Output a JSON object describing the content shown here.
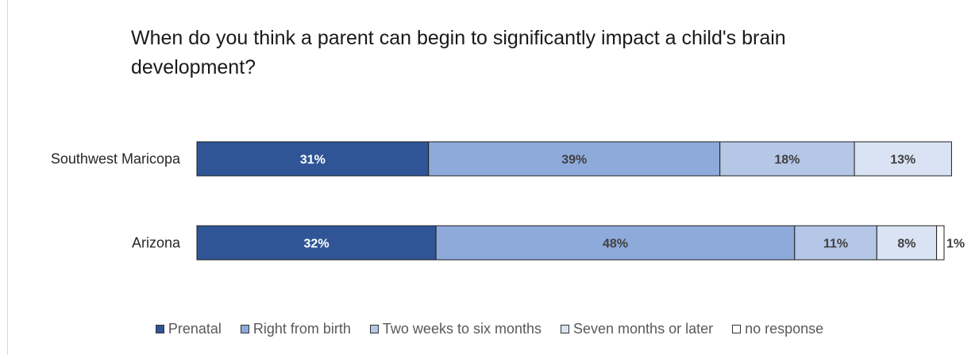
{
  "chart_data": {
    "type": "bar",
    "orientation": "horizontal",
    "stacked": true,
    "title": "When do you think a parent can begin to significantly impact a child's brain development?",
    "categories": [
      "Southwest Maricopa",
      "Arizona"
    ],
    "series": [
      {
        "name": "Prenatal",
        "color": "#2f5597",
        "label_color": "#ffffff",
        "values": [
          31,
          32
        ],
        "labels": [
          "31%",
          "32%"
        ]
      },
      {
        "name": "Right from birth",
        "color": "#8eaadb",
        "label_color": "#404040",
        "values": [
          39,
          48
        ],
        "labels": [
          "39%",
          "48%"
        ]
      },
      {
        "name": "Two weeks to six months",
        "color": "#b4c7e7",
        "label_color": "#404040",
        "values": [
          18,
          11
        ],
        "labels": [
          "18%",
          "11%"
        ]
      },
      {
        "name": "Seven months or later",
        "color": "#dae3f3",
        "label_color": "#404040",
        "values": [
          13,
          8
        ],
        "labels": [
          "13%",
          "8%"
        ]
      },
      {
        "name": "no response",
        "color": "#ffffff",
        "label_color": "#404040",
        "values": [
          0,
          1
        ],
        "labels": [
          "",
          "1%"
        ]
      }
    ],
    "legend_position": "bottom",
    "grid": false
  }
}
